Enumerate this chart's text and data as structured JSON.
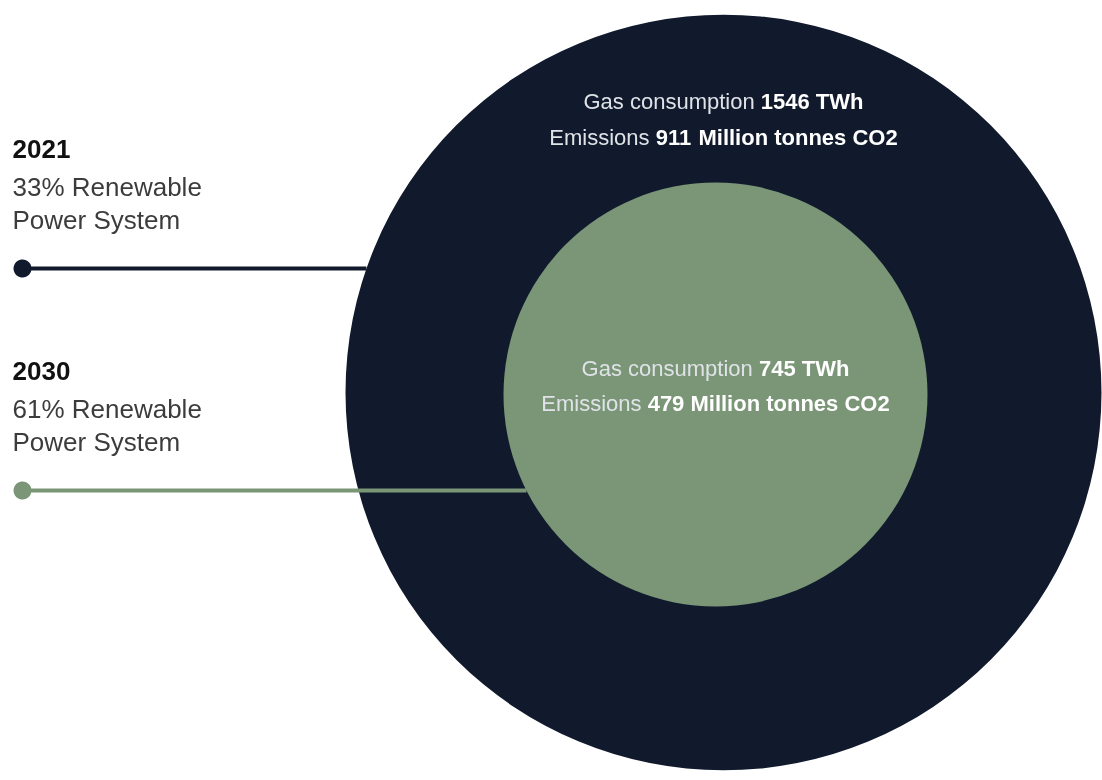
{
  "chart_data": {
    "type": "other",
    "categories": [
      "2021",
      "2030"
    ],
    "colors": [
      "#101a2c",
      "#7a9677"
    ],
    "annotations": [
      "33% Renewable Power System",
      "61% Renewable Power System",
      "TWh",
      "Million tonnes CO2"
    ],
    "data_labels": true,
    "series": [
      {
        "name": "Gas consumption",
        "values": [
          1546,
          745
        ]
      },
      {
        "name": "Emissions",
        "values": [
          911,
          479
        ]
      }
    ]
  }
}
